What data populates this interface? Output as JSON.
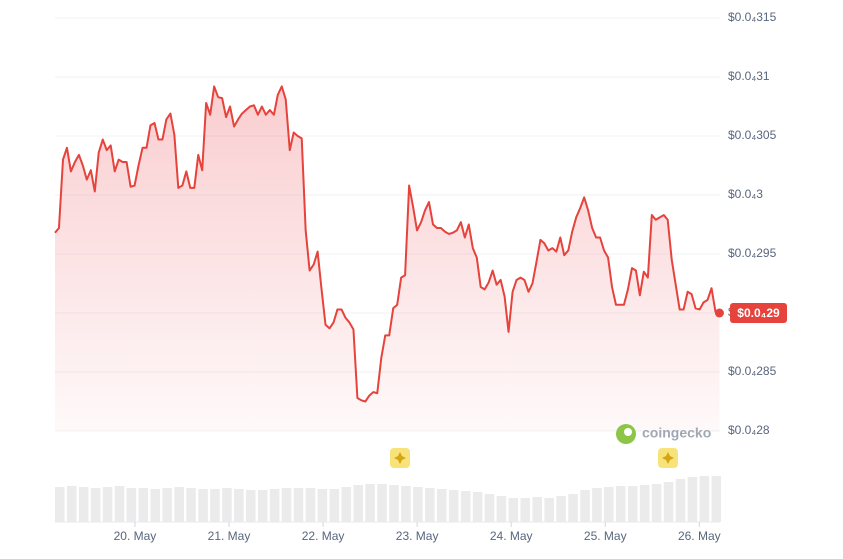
{
  "chart_data": {
    "type": "line",
    "x": [
      19.15,
      19.192,
      19.235,
      19.277,
      19.319,
      19.362,
      19.404,
      19.446,
      19.488,
      19.531,
      19.573,
      19.615,
      19.658,
      19.7,
      19.742,
      19.785,
      19.827,
      19.869,
      19.911,
      19.954,
      19.996,
      20.038,
      20.081,
      20.123,
      20.165,
      20.208,
      20.25,
      20.292,
      20.334,
      20.377,
      20.419,
      20.461,
      20.504,
      20.546,
      20.588,
      20.631,
      20.673,
      20.715,
      20.757,
      20.8,
      20.842,
      20.884,
      20.927,
      20.969,
      21.011,
      21.054,
      21.096,
      21.138,
      21.18,
      21.223,
      21.265,
      21.307,
      21.35,
      21.392,
      21.434,
      21.477,
      21.519,
      21.561,
      21.603,
      21.646,
      21.688,
      21.73,
      21.773,
      21.815,
      21.857,
      21.9,
      21.942,
      21.984,
      22.026,
      22.069,
      22.111,
      22.153,
      22.196,
      22.238,
      22.28,
      22.323,
      22.365,
      22.407,
      22.449,
      22.492,
      22.534,
      22.576,
      22.619,
      22.661,
      22.703,
      22.746,
      22.788,
      22.83,
      22.872,
      22.915,
      22.957,
      22.999,
      23.042,
      23.084,
      23.126,
      23.169,
      23.211,
      23.253,
      23.295,
      23.338,
      23.38,
      23.422,
      23.465,
      23.507,
      23.549,
      23.592,
      23.634,
      23.676,
      23.718,
      23.761,
      23.803,
      23.845,
      23.888,
      23.93,
      23.972,
      24.015,
      24.057,
      24.099,
      24.141,
      24.184,
      24.226,
      24.268,
      24.311,
      24.353,
      24.395,
      24.438,
      24.48,
      24.522,
      24.564,
      24.607,
      24.649,
      24.691,
      24.734,
      24.776,
      24.818,
      24.861,
      24.903,
      24.945,
      24.987,
      25.03,
      25.072,
      25.114,
      25.157,
      25.199,
      25.241,
      25.284,
      25.326,
      25.368,
      25.41,
      25.453,
      25.495,
      25.537,
      25.58,
      25.622,
      25.664,
      25.707,
      25.749,
      25.791,
      25.833,
      25.876,
      25.918,
      25.96,
      26.003,
      26.045,
      26.087,
      26.13,
      26.172,
      26.214
    ],
    "series": [
      {
        "color": "#e5433b",
        "values": [
          2.968e-05,
          2.972e-05,
          3.03e-05,
          3.04e-05,
          3.02e-05,
          3.028e-05,
          3.034e-05,
          3.025e-05,
          3.013e-05,
          3.021e-05,
          3.003e-05,
          3.036e-05,
          3.047e-05,
          3.038e-05,
          3.042e-05,
          3.02e-05,
          3.03e-05,
          3.028e-05,
          3.028e-05,
          3.007e-05,
          3.008e-05,
          3.025e-05,
          3.04e-05,
          3.04e-05,
          3.059e-05,
          3.061e-05,
          3.047e-05,
          3.047e-05,
          3.064e-05,
          3.069e-05,
          3.051e-05,
          3.006e-05,
          3.008e-05,
          3.02e-05,
          3.006e-05,
          3.006e-05,
          3.034e-05,
          3.021e-05,
          3.078e-05,
          3.068e-05,
          3.092e-05,
          3.083e-05,
          3.082e-05,
          3.066e-05,
          3.075e-05,
          3.058e-05,
          3.064e-05,
          3.069e-05,
          3.072e-05,
          3.075e-05,
          3.076e-05,
          3.068e-05,
          3.075e-05,
          3.068e-05,
          3.072e-05,
          3.068e-05,
          3.085e-05,
          3.092e-05,
          3.081e-05,
          3.038e-05,
          3.053e-05,
          3.05e-05,
          3.048e-05,
          2.97e-05,
          2.936e-05,
          2.941e-05,
          2.952e-05,
          2.92e-05,
          2.89e-05,
          2.887e-05,
          2.892e-05,
          2.903e-05,
          2.903e-05,
          2.896e-05,
          2.892e-05,
          2.886e-05,
          2.828e-05,
          2.826e-05,
          2.825e-05,
          2.83e-05,
          2.833e-05,
          2.832e-05,
          2.862e-05,
          2.881e-05,
          2.881e-05,
          2.904e-05,
          2.907e-05,
          2.93e-05,
          2.932e-05,
          3.008e-05,
          2.99e-05,
          2.97e-05,
          2.977e-05,
          2.987e-05,
          2.994e-05,
          2.975e-05,
          2.972e-05,
          2.972e-05,
          2.969e-05,
          2.967e-05,
          2.968e-05,
          2.97e-05,
          2.977e-05,
          2.964e-05,
          2.975e-05,
          2.955e-05,
          2.947e-05,
          2.922e-05,
          2.92e-05,
          2.926e-05,
          2.936e-05,
          2.924e-05,
          2.928e-05,
          2.914e-05,
          2.884e-05,
          2.918e-05,
          2.928e-05,
          2.93e-05,
          2.928e-05,
          2.918e-05,
          2.925e-05,
          2.943e-05,
          2.962e-05,
          2.959e-05,
          2.953e-05,
          2.955e-05,
          2.952e-05,
          2.964e-05,
          2.949e-05,
          2.953e-05,
          2.969e-05,
          2.981e-05,
          2.989e-05,
          2.998e-05,
          2.987e-05,
          2.972e-05,
          2.964e-05,
          2.964e-05,
          2.953e-05,
          2.947e-05,
          2.922e-05,
          2.907e-05,
          2.907e-05,
          2.907e-05,
          2.92e-05,
          2.938e-05,
          2.936e-05,
          2.915e-05,
          2.935e-05,
          2.93e-05,
          2.983e-05,
          2.979e-05,
          2.981e-05,
          2.983e-05,
          2.979e-05,
          2.945e-05,
          2.924e-05,
          2.903e-05,
          2.903e-05,
          2.918e-05,
          2.916e-05,
          2.904e-05,
          2.903e-05,
          2.909e-05,
          2.911e-05,
          2.921e-05,
          2.901e-05,
          2.9e-05
        ]
      }
    ],
    "xlim": [
      19.15,
      26.22
    ],
    "xticks": [
      {
        "value": 20,
        "label": "20. May"
      },
      {
        "value": 21,
        "label": "21. May"
      },
      {
        "value": 22,
        "label": "22. May"
      },
      {
        "value": 23,
        "label": "23. May"
      },
      {
        "value": 24,
        "label": "24. May"
      },
      {
        "value": 25,
        "label": "25. May"
      },
      {
        "value": 26,
        "label": "26. May"
      }
    ],
    "ylim": [
      2.8e-05,
      3.15e-05
    ],
    "yticks": [
      {
        "value": 3.15e-05,
        "label": "$0.0₄315"
      },
      {
        "value": 3.1e-05,
        "label": "$0.0₄31"
      },
      {
        "value": 3.05e-05,
        "label": "$0.0₄305"
      },
      {
        "value": 3e-05,
        "label": "$0.0₄3"
      },
      {
        "value": 2.95e-05,
        "label": "$0.0₄295"
      },
      {
        "value": 2.9e-05,
        "label": "$0.0₄29"
      },
      {
        "value": 2.85e-05,
        "label": "$0.0₄285"
      },
      {
        "value": 2.8e-05,
        "label": "$0.0₄28"
      }
    ],
    "grid": true,
    "last_price_label": "$0.0₄29",
    "watermark": "coingecko",
    "volume": {
      "color": "#ebebeb",
      "ylim": [
        0,
        50
      ],
      "x": [
        19.15,
        19.277,
        19.404,
        19.531,
        19.658,
        19.785,
        19.911,
        20.038,
        20.165,
        20.292,
        20.419,
        20.546,
        20.673,
        20.8,
        20.927,
        21.054,
        21.18,
        21.307,
        21.434,
        21.561,
        21.688,
        21.815,
        21.942,
        22.069,
        22.196,
        22.323,
        22.449,
        22.576,
        22.703,
        22.83,
        22.957,
        23.084,
        23.211,
        23.338,
        23.465,
        23.592,
        23.718,
        23.845,
        23.972,
        24.099,
        24.226,
        24.353,
        24.48,
        24.607,
        24.734,
        24.861,
        24.987,
        25.114,
        25.241,
        25.368,
        25.495,
        25.622,
        25.749,
        25.876,
        26.003,
        26.13
      ],
      "values": [
        35,
        36,
        35,
        34,
        35,
        36,
        34,
        34,
        33,
        34,
        35,
        34,
        33,
        33,
        34,
        33,
        32,
        32,
        33,
        34,
        34,
        34,
        33,
        33,
        35,
        37,
        38,
        38,
        37,
        36,
        35,
        34,
        33,
        32,
        31,
        30,
        28,
        26,
        24,
        24,
        25,
        24,
        26,
        28,
        32,
        34,
        35,
        36,
        36,
        37,
        38,
        40,
        43,
        45,
        46,
        46
      ]
    }
  }
}
